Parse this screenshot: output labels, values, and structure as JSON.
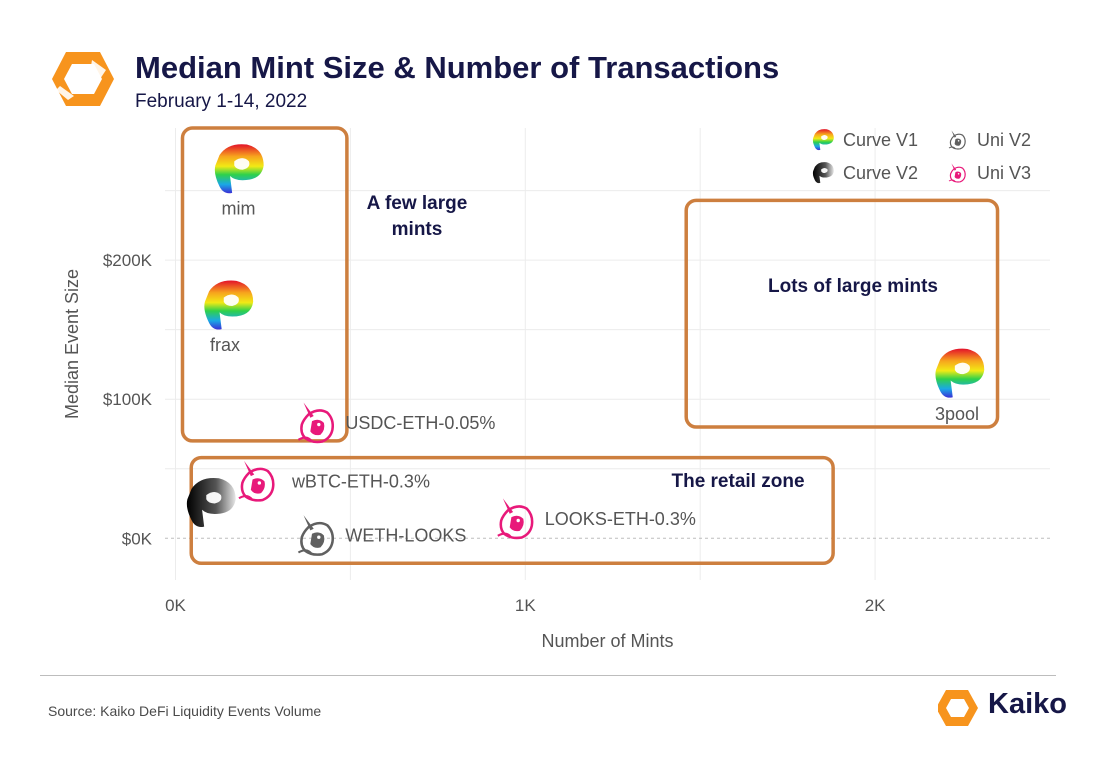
{
  "header": {
    "title": "Median Mint Size & Number of Transactions",
    "subtitle": "February 1-14, 2022",
    "logo_icon": "kaiko-hexagon-icon"
  },
  "footer": {
    "source": "Source: Kaiko DeFi Liquidity Events Volume",
    "brand": "Kaiko"
  },
  "colors": {
    "title": "#161747",
    "box_outline": "#cd7f3f",
    "grid": "#ececec",
    "zero_line": "#bdbdbd",
    "axis_text": "#555555",
    "uni_v3": "#e8197a",
    "uni_v2": "#606060",
    "brand_orange": "#f7941d"
  },
  "chart_data": {
    "type": "scatter",
    "xlabel": "Number of Mints",
    "ylabel": "Median Event Size",
    "xlim": [
      -30,
      2500
    ],
    "ylim": [
      -30000,
      295000
    ],
    "xticks": [
      {
        "value": 0,
        "label": "0K"
      },
      {
        "value": 1000,
        "label": "1K"
      },
      {
        "value": 2000,
        "label": "2K"
      }
    ],
    "yticks": [
      {
        "value": 0,
        "label": "$0K"
      },
      {
        "value": 100000,
        "label": "$100K"
      },
      {
        "value": 200000,
        "label": "$200K"
      }
    ],
    "grid": true,
    "legend": {
      "position": "top-right",
      "entries": [
        {
          "name": "Curve V1",
          "icon": "curve-v1-icon"
        },
        {
          "name": "Uni V2",
          "icon": "uni-v2-icon"
        },
        {
          "name": "Curve V2",
          "icon": "curve-v2-icon"
        },
        {
          "name": "Uni V3",
          "icon": "uni-v3-icon"
        }
      ]
    },
    "series": [
      {
        "name": "Curve V1",
        "points": [
          {
            "label": "mim",
            "x": 180,
            "y": 265000
          },
          {
            "label": "frax",
            "x": 150,
            "y": 167000
          },
          {
            "label": "3pool",
            "x": 2240,
            "y": 118000
          }
        ]
      },
      {
        "name": "Curve V2",
        "points": [
          {
            "label": "",
            "x": 100,
            "y": 25000
          }
        ]
      },
      {
        "name": "Uni V2",
        "points": [
          {
            "label": "WETH-LOOKS",
            "x": 400,
            "y": 2000
          }
        ]
      },
      {
        "name": "Uni V3",
        "points": [
          {
            "label": "USDC-ETH-0.05%",
            "x": 400,
            "y": 83000
          },
          {
            "label": "wBTC-ETH-0.3%",
            "x": 230,
            "y": 41000
          },
          {
            "label": "LOOKS-ETH-0.3%",
            "x": 970,
            "y": 14000
          }
        ]
      }
    ],
    "annotations": [
      {
        "text": [
          "A few large",
          "mints"
        ],
        "x0": 20,
        "x1": 490,
        "y0": 70000,
        "y1": 295000
      },
      {
        "text": [
          "Lots of large mints"
        ],
        "x0": 1460,
        "x1": 2350,
        "y0": 80000,
        "y1": 243000
      },
      {
        "text": [
          "The retail zone"
        ],
        "x0": 45,
        "x1": 1880,
        "y0": -18000,
        "y1": 58000
      }
    ]
  }
}
